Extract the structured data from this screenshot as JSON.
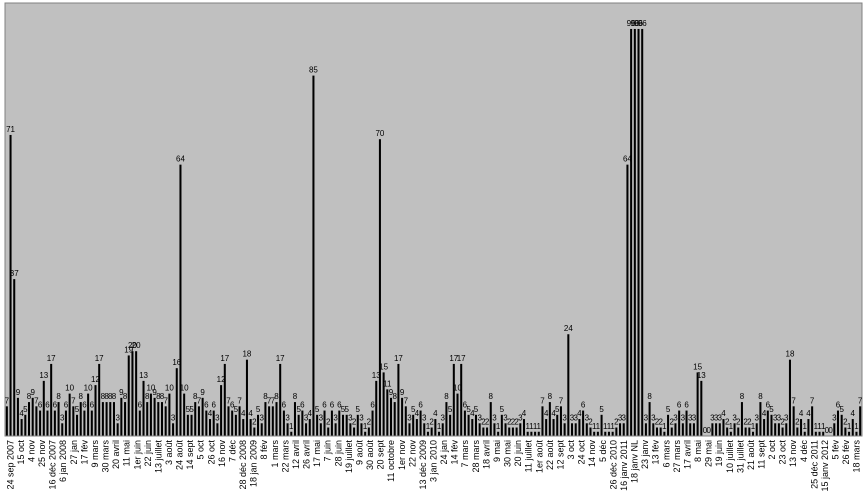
{
  "chart_data": {
    "type": "bar",
    "title": "",
    "xlabel": "",
    "ylabel": "",
    "ylim": [
      0,
      100
    ],
    "grid": false,
    "colors": {
      "plot_bg": "#c0c0c0",
      "bar": "#000000",
      "frame": "#808080",
      "text": "#000000"
    },
    "x_tick_labels": [
      "24 sep 2007",
      "15 oct",
      "4 nov",
      "25 nov",
      "16 déc 2007",
      "6 jan 2008",
      "27 jan",
      "17 fév",
      "9 mars",
      "30 mars",
      "20 avril",
      "11 mai",
      "1er juin",
      "22 juin",
      "13 juillet",
      "3 août",
      "24 août",
      "14 sept",
      "5 oct",
      "26 oct",
      "16 nov",
      "7 déc",
      "28 déc 2008",
      "18 jan 2009",
      "8 fév",
      "1 mars",
      "22 mars",
      "12 avril",
      "26 avril",
      "17 mai",
      "7 juin",
      "28 juin",
      "19 juillet",
      "9 août",
      "30 août",
      "20 sept",
      "11 octobre",
      "1er nov",
      "22 nov",
      "13 déc 2009",
      "3 jan 2010",
      "24 jan",
      "14 fév",
      "7 mars",
      "28 mars",
      "18 avril",
      "9 mai",
      "30 mai",
      "20 juin",
      "11 juillet",
      "1er août",
      "22 août",
      "12 sept",
      "3 oct",
      "24 oct",
      "14 nov",
      "5 déc",
      "26 déc 2010",
      "16 janv 2011",
      "18 janv NL",
      "23 janv",
      "13 fév",
      "6 mars",
      "27 mars",
      "17 avril",
      "8 mai",
      "29 mai",
      "19 juin",
      "10 juillet",
      "31 juillet",
      "21 août",
      "11 sept",
      "2 oct",
      "23 oct",
      "13 nov",
      "4 déc",
      "25 déc 2011",
      "15 janv 2012",
      "5 fév",
      "26 fév",
      "18 mars"
    ],
    "values": [
      7,
      71,
      37,
      9,
      4,
      5,
      8,
      9,
      7,
      6,
      13,
      6,
      17,
      6,
      8,
      3,
      6,
      10,
      7,
      5,
      8,
      6,
      10,
      6,
      12,
      17,
      8,
      8,
      8,
      8,
      3,
      9,
      8,
      19,
      20,
      20,
      6,
      13,
      8,
      10,
      9,
      8,
      8,
      7,
      10,
      3,
      16,
      64,
      10,
      5,
      5,
      8,
      7,
      9,
      6,
      4,
      6,
      3,
      12,
      17,
      7,
      6,
      5,
      7,
      4,
      18,
      4,
      2,
      5,
      3,
      8,
      7,
      7,
      8,
      17,
      6,
      3,
      1,
      8,
      5,
      6,
      3,
      4,
      85,
      5,
      3,
      6,
      2,
      6,
      3,
      6,
      5,
      5,
      3,
      2,
      5,
      3,
      1,
      2,
      6,
      13,
      70,
      15,
      11,
      9,
      8,
      17,
      9,
      7,
      3,
      5,
      4,
      6,
      3,
      1,
      2,
      4,
      1,
      3,
      8,
      5,
      17,
      10,
      17,
      6,
      5,
      4,
      5,
      3,
      2,
      2,
      8,
      3,
      1,
      5,
      3,
      2,
      2,
      2,
      3,
      4,
      1,
      1,
      1,
      1,
      7,
      4,
      8,
      4,
      5,
      7,
      3,
      24,
      3,
      3,
      4,
      6,
      3,
      2,
      1,
      1,
      5,
      1,
      1,
      1,
      2,
      3,
      3,
      64,
      96,
      96,
      96,
      96,
      3,
      8,
      3,
      2,
      2,
      1,
      5,
      2,
      3,
      6,
      3,
      6,
      3,
      3,
      15,
      13,
      0,
      0,
      3,
      3,
      3,
      4,
      2,
      1,
      3,
      2,
      8,
      2,
      2,
      1,
      3,
      8,
      4,
      6,
      5,
      3,
      3,
      2,
      3,
      18,
      7,
      2,
      4,
      1,
      4,
      7,
      1,
      1,
      1,
      0,
      0,
      3,
      6,
      5,
      2,
      1,
      4,
      1,
      7
    ]
  }
}
